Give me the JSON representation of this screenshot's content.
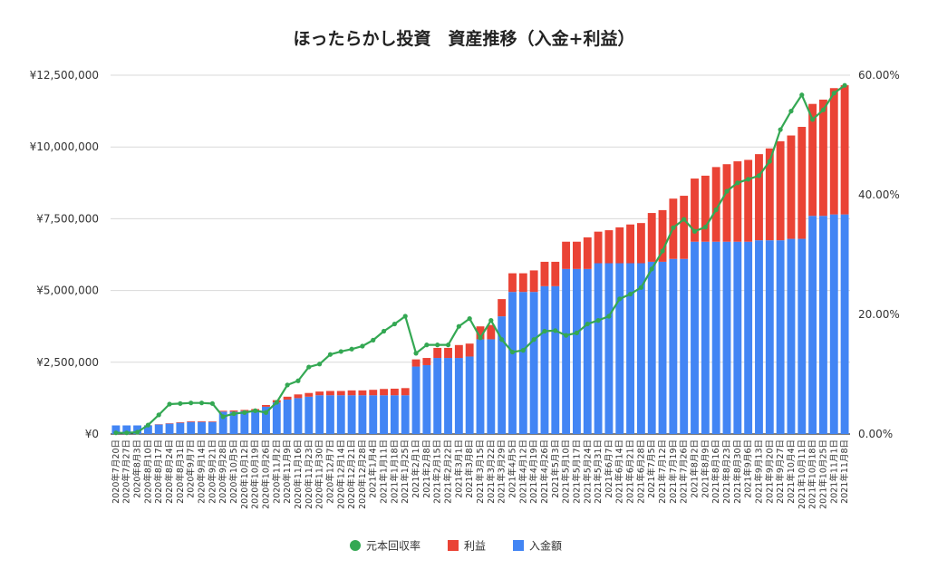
{
  "chart_data": {
    "type": "bar",
    "stacked": true,
    "title": "ほったらかし投資　資産推移（入金+利益）",
    "y_left": {
      "ticks": [
        "¥0",
        "¥2,500,000",
        "¥5,000,000",
        "¥7,500,000",
        "¥10,000,000",
        "¥12,500,000"
      ],
      "range": [
        0,
        12500000
      ]
    },
    "y_right": {
      "ticks": [
        "0.00%",
        "20.00%",
        "40.00%",
        "60.00%"
      ],
      "range": [
        0,
        60
      ]
    },
    "grid": true,
    "legend_position": "bottom",
    "categories": [
      "2020年7月20日",
      "2020年7月27日",
      "2020年8月3日",
      "2020年8月10日",
      "2020年8月17日",
      "2020年8月24日",
      "2020年8月31日",
      "2020年9月7日",
      "2020年9月14日",
      "2020年9月21日",
      "2020年9月28日",
      "2020年10月5日",
      "2020年10月12日",
      "2020年10月19日",
      "2020年10月26日",
      "2020年11月2日",
      "2020年11月9日",
      "2020年11月16日",
      "2020年11月23日",
      "2020年11月30日",
      "2020年12月7日",
      "2020年12月14日",
      "2020年12月21日",
      "2020年12月28日",
      "2021年1月4日",
      "2021年1月11日",
      "2021年1月18日",
      "2021年1月25日",
      "2021年2月1日",
      "2021年2月8日",
      "2021年2月15日",
      "2021年2月22日",
      "2021年3月1日",
      "2021年3月8日",
      "2021年3月15日",
      "2021年3月22日",
      "2021年3月29日",
      "2021年4月5日",
      "2021年4月12日",
      "2021年4月19日",
      "2021年4月26日",
      "2021年5月3日",
      "2021年5月10日",
      "2021年5月17日",
      "2021年5月24日",
      "2021年5月31日",
      "2021年6月7日",
      "2021年6月14日",
      "2021年6月21日",
      "2021年6月28日",
      "2021年7月5日",
      "2021年7月12日",
      "2021年7月19日",
      "2021年7月26日",
      "2021年8月2日",
      "2021年8月9日",
      "2021年8月16日",
      "2021年8月23日",
      "2021年8月30日",
      "2021年9月6日",
      "2021年9月13日",
      "2021年9月20日",
      "2021年9月27日",
      "2021年10月4日",
      "2021年10月11日",
      "2021年10月18日",
      "2021年10月25日",
      "2021年11月1日",
      "2021年11月8日"
    ],
    "tick_labels": [
      "2020年7月20日",
      "2020年7月27日",
      "2020年8月3日",
      "2020年8月10日",
      "2020年8月17日",
      "2020年8月24日",
      "2020年8月31日",
      "2020年9月7日",
      "2020年9月14日",
      "2020年9月21日",
      "2020年9月28日",
      "2020年10月5日",
      "2020年10月12日",
      "2020年10月19日",
      "2020年10月26日",
      "2020年11月2日",
      "2020年11月9日",
      "2020年11月16日",
      "2020年11月23日",
      "2020年11月30日",
      "2020年12月7日",
      "2020年12月14日",
      "2020年12月21日",
      "2020年12月28日",
      "2021年1月4日",
      "2021年1月11日",
      "2021年1月18日",
      "2021年1月25日",
      "2021年2月1日",
      "2021年2月8日",
      "2021年2月15日",
      "2021年2月22日",
      "2021年3月1日",
      "2021年3月8日",
      "2021年3月15日",
      "2021年3月22日",
      "2021年3月29日",
      "2021年4月5日",
      "2021年4月12日",
      "2021年4月19日",
      "2021年4月26日",
      "2021年5月3日",
      "2021年5月10日",
      "2021年5月17日",
      "2021年5月24日",
      "2021年5月31日",
      "2021年6月7日",
      "2021年6月14日",
      "2021年6月21日",
      "2021年6月28日",
      "2021年7月5日",
      "2021年7月12日",
      "2021年7月19日",
      "2021年7月26日",
      "2021年8月2日",
      "2021年8月9日",
      "2021年8月16日",
      "2021年8月23日",
      "2021年8月30日",
      "2021年9月6日",
      "2021年9月13日",
      "2021年9月20日",
      "2021年9月27日",
      "2021年10月4日",
      "2021年10月11日",
      "2021年10月18日",
      "2021年10月25日",
      "2021年11月1日",
      "2021年11月8日"
    ],
    "series": [
      {
        "name": "入金額",
        "kind": "bar",
        "axis": "left",
        "color": "#4285f4",
        "values": [
          300000,
          300000,
          300000,
          300000,
          330000,
          360000,
          390000,
          420000,
          420000,
          420000,
          780000,
          780000,
          800000,
          820000,
          950000,
          1100000,
          1200000,
          1250000,
          1300000,
          1350000,
          1350000,
          1350000,
          1350000,
          1350000,
          1350000,
          1350000,
          1350000,
          1350000,
          2350000,
          2400000,
          2650000,
          2650000,
          2650000,
          2700000,
          3300000,
          3300000,
          4100000,
          4950000,
          4950000,
          4950000,
          5150000,
          5150000,
          5750000,
          5750000,
          5750000,
          5950000,
          5950000,
          5950000,
          5950000,
          5950000,
          6000000,
          6000000,
          6100000,
          6100000,
          6700000,
          6700000,
          6700000,
          6700000,
          6700000,
          6700000,
          6750000,
          6750000,
          6750000,
          6800000,
          6800000,
          7600000,
          7600000,
          7650000,
          7650000
        ]
      },
      {
        "name": "利益",
        "kind": "bar",
        "axis": "left",
        "color": "#ea4335",
        "values": [
          0,
          0,
          0,
          5000,
          10000,
          15000,
          20000,
          25000,
          25000,
          20000,
          30000,
          40000,
          40000,
          50000,
          60000,
          80000,
          100000,
          130000,
          130000,
          130000,
          150000,
          150000,
          170000,
          170000,
          190000,
          220000,
          230000,
          250000,
          250000,
          250000,
          350000,
          350000,
          450000,
          450000,
          450000,
          500000,
          600000,
          650000,
          650000,
          750000,
          850000,
          850000,
          950000,
          950000,
          1100000,
          1100000,
          1150000,
          1250000,
          1350000,
          1400000,
          1700000,
          1800000,
          2100000,
          2200000,
          2200000,
          2300000,
          2600000,
          2700000,
          2800000,
          2850000,
          3000000,
          3200000,
          3450000,
          3600000,
          3900000,
          3900000,
          4050000,
          4400000,
          4500000
        ]
      },
      {
        "name": "元本回収率",
        "kind": "line",
        "axis": "right",
        "color": "#34a853",
        "values": [
          0.2,
          0.2,
          0.3,
          1.5,
          3.2,
          5.0,
          5.1,
          5.2,
          5.2,
          5.1,
          2.9,
          3.4,
          3.6,
          3.9,
          3.6,
          5.3,
          8.2,
          8.9,
          11.2,
          11.7,
          13.3,
          13.8,
          14.2,
          14.7,
          15.7,
          17.2,
          18.4,
          19.7,
          13.5,
          14.9,
          14.9,
          14.9,
          18.0,
          19.3,
          16.1,
          19.0,
          15.8,
          13.7,
          14.0,
          15.8,
          17.2,
          17.3,
          16.5,
          16.9,
          18.4,
          19.0,
          19.7,
          22.6,
          23.4,
          24.5,
          27.6,
          30.6,
          34.5,
          35.9,
          33.9,
          34.6,
          37.5,
          40.6,
          42.0,
          42.6,
          43.2,
          45.6,
          50.9,
          54.0,
          56.7,
          52.6,
          54.2,
          57.0,
          58.3
        ]
      }
    ],
    "legend": [
      "元本回収率",
      "利益",
      "入金額"
    ]
  }
}
